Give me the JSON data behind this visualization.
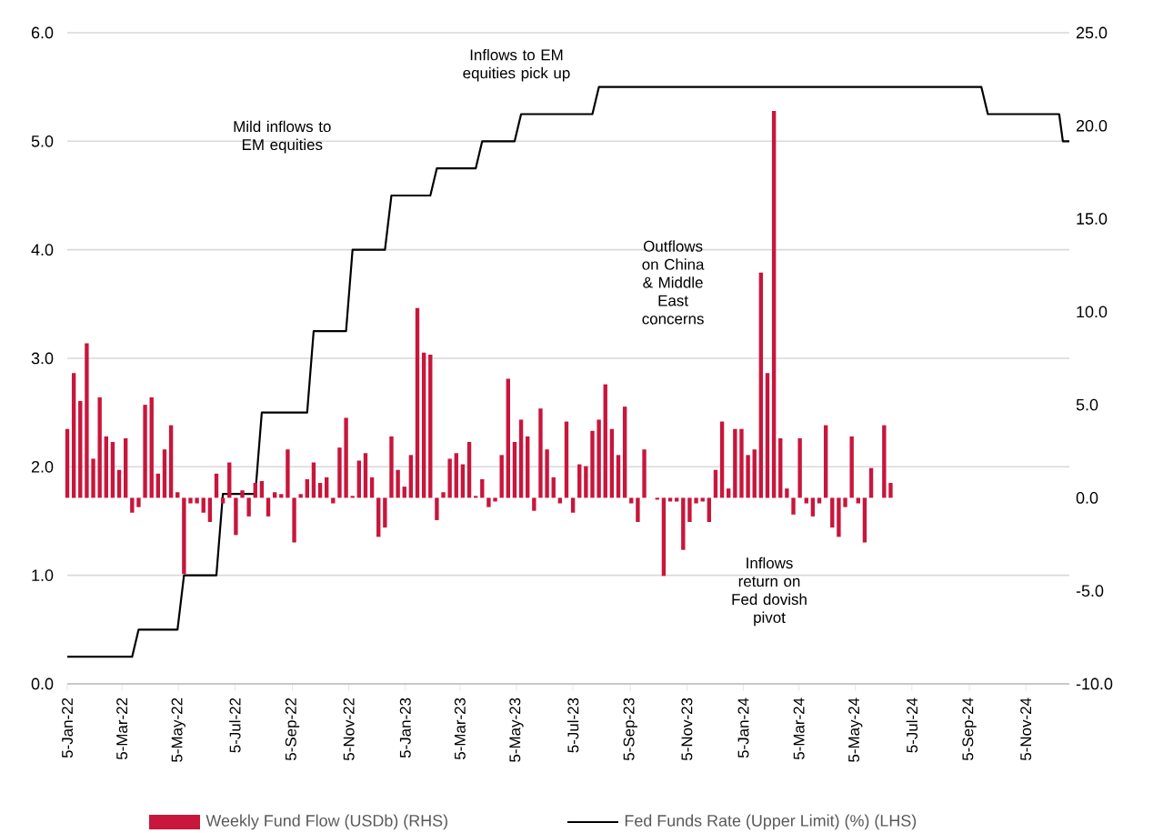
{
  "chart_data": {
    "type": "bar",
    "series": [
      {
        "name": "Weekly Fund Flow (USDb) (RHS)",
        "axis": "y2",
        "color": "#c8163c",
        "x": [
          "2022-01-05",
          "2022-01-12",
          "2022-01-19",
          "2022-01-26",
          "2022-02-02",
          "2022-02-09",
          "2022-02-16",
          "2022-02-23",
          "2022-03-02",
          "2022-03-09",
          "2022-03-16",
          "2022-03-23",
          "2022-03-30",
          "2022-04-06",
          "2022-04-13",
          "2022-04-20",
          "2022-04-27",
          "2022-05-04",
          "2022-05-11",
          "2022-05-18",
          "2022-05-25",
          "2022-06-01",
          "2022-06-08",
          "2022-06-15",
          "2022-06-22",
          "2022-06-29",
          "2022-07-06",
          "2022-07-13",
          "2022-07-20",
          "2022-07-27",
          "2022-08-03",
          "2022-08-10",
          "2022-08-17",
          "2022-08-24",
          "2022-08-31",
          "2022-09-07",
          "2022-09-14",
          "2022-09-21",
          "2022-09-28",
          "2022-10-05",
          "2022-10-12",
          "2022-10-19",
          "2022-10-26",
          "2022-11-02",
          "2022-11-09",
          "2022-11-16",
          "2022-11-23",
          "2022-11-30",
          "2022-12-07",
          "2022-12-14",
          "2022-12-21",
          "2022-12-28",
          "2023-01-04",
          "2023-01-11",
          "2023-01-18",
          "2023-01-25",
          "2023-02-01",
          "2023-02-08",
          "2023-02-15",
          "2023-02-22",
          "2023-03-01",
          "2023-03-08",
          "2023-03-15",
          "2023-03-22",
          "2023-03-29",
          "2023-04-05",
          "2023-04-12",
          "2023-04-19",
          "2023-04-26",
          "2023-05-03",
          "2023-05-10",
          "2023-05-17",
          "2023-05-24",
          "2023-05-31",
          "2023-06-07",
          "2023-06-14",
          "2023-06-21",
          "2023-06-28",
          "2023-07-05",
          "2023-07-12",
          "2023-07-19",
          "2023-07-26",
          "2023-08-02",
          "2023-08-09",
          "2023-08-16",
          "2023-08-23",
          "2023-08-30",
          "2023-09-06",
          "2023-09-13",
          "2023-09-20",
          "2023-09-27",
          "2023-10-04",
          "2023-10-11",
          "2023-10-18",
          "2023-10-25",
          "2023-11-01",
          "2023-11-08",
          "2023-11-15",
          "2023-11-22",
          "2023-11-29",
          "2023-12-06",
          "2023-12-13",
          "2023-12-20",
          "2023-12-27",
          "2024-01-03",
          "2024-01-10",
          "2024-01-17",
          "2024-01-24",
          "2024-01-31",
          "2024-02-07",
          "2024-02-14",
          "2024-02-21",
          "2024-02-28",
          "2024-03-06",
          "2024-03-13",
          "2024-03-20",
          "2024-03-27",
          "2024-04-03",
          "2024-04-10",
          "2024-04-17",
          "2024-04-24",
          "2024-05-01",
          "2024-05-08",
          "2024-05-15",
          "2024-05-22",
          "2024-05-29",
          "2024-06-05",
          "2024-06-12"
        ],
        "values": [
          3.7,
          6.7,
          5.2,
          8.3,
          2.1,
          5.4,
          3.3,
          3.0,
          1.5,
          3.2,
          -0.8,
          -0.5,
          5.0,
          5.4,
          1.3,
          2.6,
          3.9,
          0.3,
          -4.1,
          -0.3,
          -0.3,
          -0.8,
          -1.3,
          1.3,
          -0.3,
          1.9,
          -2.0,
          0.4,
          -1.0,
          0.8,
          0.9,
          -1.0,
          0.3,
          0.2,
          2.6,
          -2.4,
          0.2,
          1.0,
          1.9,
          0.8,
          1.1,
          -0.3,
          2.7,
          4.3,
          0.1,
          2.0,
          2.4,
          1.1,
          -2.1,
          -1.6,
          3.3,
          1.5,
          0.6,
          2.3,
          10.2,
          7.8,
          7.7,
          -1.2,
          0.3,
          2.1,
          2.4,
          1.8,
          3.0,
          0.1,
          1.0,
          -0.5,
          -0.2,
          2.3,
          6.4,
          3.0,
          4.2,
          3.3,
          -0.7,
          4.8,
          2.6,
          1.1,
          -0.3,
          4.1,
          -0.8,
          1.8,
          1.7,
          3.6,
          4.2,
          6.1,
          3.7,
          2.3,
          4.9,
          -0.3,
          -1.3,
          2.6,
          0,
          -0.1,
          -4.2,
          -0.2,
          -0.2,
          -2.8,
          -1.3,
          -0.3,
          -0.2,
          -1.3,
          1.5,
          4.1,
          0.5,
          3.7,
          3.7,
          2.3,
          2.6,
          12.1,
          6.7,
          20.8,
          3.2,
          0.5,
          -0.9,
          3.2,
          -0.3,
          -1.0,
          -0.3,
          3.9,
          -1.6,
          -2.1,
          -0.5,
          3.3,
          -0.3,
          -2.4,
          1.6,
          0,
          3.9,
          0.8
        ]
      },
      {
        "name": "Fed Funds Rate (Upper Limit) (%) (LHS)",
        "type": "line",
        "axis": "y",
        "color": "#000000",
        "x": [
          "2022-01-05",
          "2022-03-16",
          "2022-03-23",
          "2022-05-04",
          "2022-05-11",
          "2022-06-15",
          "2022-06-22",
          "2022-07-27",
          "2022-08-03",
          "2022-09-21",
          "2022-09-28",
          "2022-11-02",
          "2022-11-09",
          "2022-12-14",
          "2022-12-21",
          "2023-02-01",
          "2023-02-08",
          "2023-03-22",
          "2023-03-29",
          "2023-05-03",
          "2023-05-10",
          "2023-07-26",
          "2023-08-02",
          "2024-09-18",
          "2024-09-25",
          "2024-12-11",
          "2024-12-15",
          "2024-12-22"
        ],
        "values": [
          0.25,
          0.25,
          0.5,
          0.5,
          1.0,
          1.0,
          1.75,
          1.75,
          2.5,
          2.5,
          3.25,
          3.25,
          4.0,
          4.0,
          4.5,
          4.5,
          4.75,
          4.75,
          5.0,
          5.0,
          5.25,
          5.25,
          5.5,
          5.5,
          5.25,
          5.25,
          5.0,
          5.0
        ]
      }
    ],
    "xlim": [
      "2022-01-05",
      "2024-12-22"
    ],
    "xticks": [
      {
        "value": "2022-01-05",
        "label": "5-Jan-22"
      },
      {
        "value": "2022-03-05",
        "label": "5-Mar-22"
      },
      {
        "value": "2022-05-05",
        "label": "5-May-22"
      },
      {
        "value": "2022-07-05",
        "label": "5-Jul-22"
      },
      {
        "value": "2022-09-05",
        "label": "5-Sep-22"
      },
      {
        "value": "2022-11-05",
        "label": "5-Nov-22"
      },
      {
        "value": "2023-01-05",
        "label": "5-Jan-23"
      },
      {
        "value": "2023-03-05",
        "label": "5-Mar-23"
      },
      {
        "value": "2023-05-05",
        "label": "5-May-23"
      },
      {
        "value": "2023-07-05",
        "label": "5-Jul-23"
      },
      {
        "value": "2023-09-05",
        "label": "5-Sep-23"
      },
      {
        "value": "2023-11-05",
        "label": "5-Nov-23"
      },
      {
        "value": "2024-01-05",
        "label": "5-Jan-24"
      },
      {
        "value": "2024-03-05",
        "label": "5-Mar-24"
      },
      {
        "value": "2024-05-05",
        "label": "5-May-24"
      },
      {
        "value": "2024-07-05",
        "label": "5-Jul-24"
      },
      {
        "value": "2024-09-05",
        "label": "5-Sep-24"
      },
      {
        "value": "2024-11-05",
        "label": "5-Nov-24"
      }
    ],
    "ylim": [
      0,
      6
    ],
    "yticks": [
      {
        "value": 0,
        "label": "0.0"
      },
      {
        "value": 1,
        "label": "1.0"
      },
      {
        "value": 2,
        "label": "2.0"
      },
      {
        "value": 3,
        "label": "3.0"
      },
      {
        "value": 4,
        "label": "4.0"
      },
      {
        "value": 5,
        "label": "5.0"
      },
      {
        "value": 6,
        "label": "6.0"
      }
    ],
    "y2lim": [
      -10,
      25
    ],
    "y2ticks": [
      {
        "value": -10,
        "label": "-10.0"
      },
      {
        "value": -5,
        "label": "-5.0"
      },
      {
        "value": 0,
        "label": "0.0"
      },
      {
        "value": 5,
        "label": "5.0"
      },
      {
        "value": 10,
        "label": "10.0"
      },
      {
        "value": 15,
        "label": "15.0"
      },
      {
        "value": 20,
        "label": "20.0"
      },
      {
        "value": 25,
        "label": "25.0"
      }
    ],
    "grid": "y",
    "legend": "bottom",
    "annotations": [
      "Mild inflows to EM equities",
      "Inflows to EM equities pick up",
      "Outflows on China & Middle East concerns",
      "Inflows return on Fed dovish pivot"
    ]
  }
}
